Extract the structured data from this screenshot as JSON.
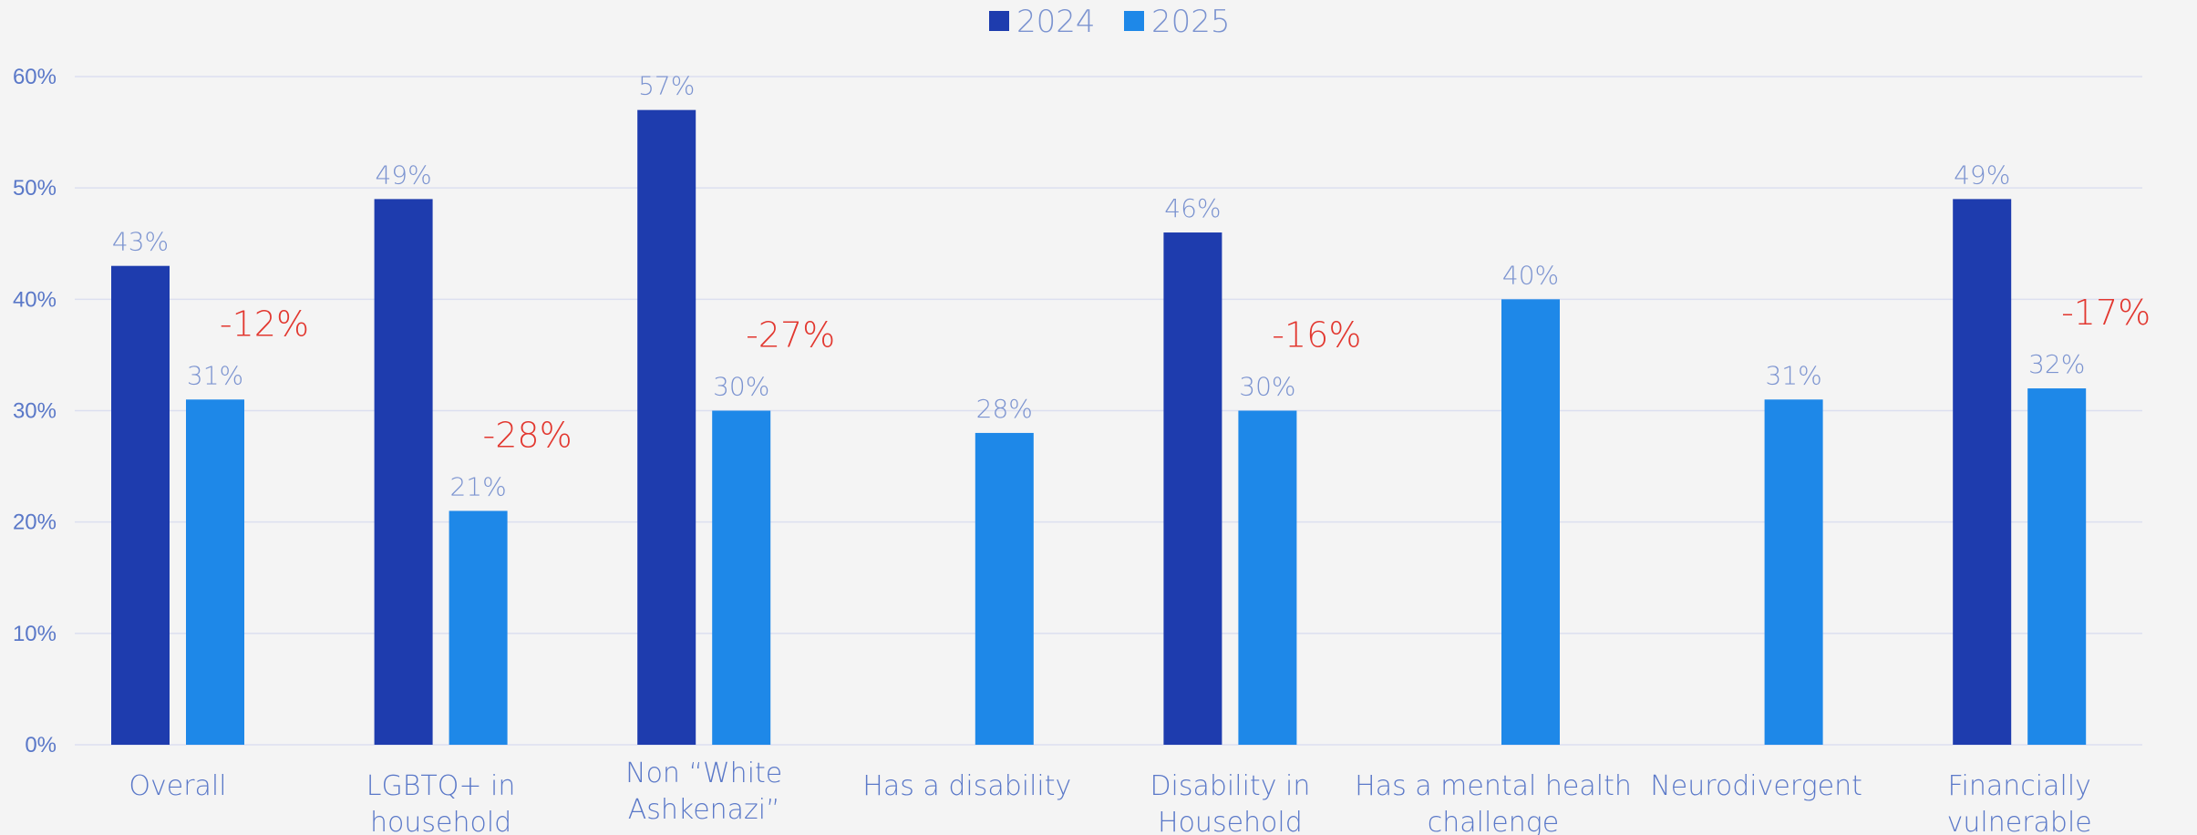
{
  "chart_data": {
    "type": "bar",
    "title": "",
    "xlabel": "",
    "ylabel": "",
    "ylim": [
      0,
      60
    ],
    "yticks": [
      0,
      10,
      20,
      30,
      40,
      50,
      60
    ],
    "ytick_labels": [
      "0%",
      "10%",
      "20%",
      "30%",
      "40%",
      "50%",
      "60%"
    ],
    "grid": true,
    "legend_position": "top-center",
    "categories": [
      [
        "Overall"
      ],
      [
        "LGBTQ+ in",
        "household"
      ],
      [
        "Non “White",
        "Ashkenazi”"
      ],
      [
        "Has a disability"
      ],
      [
        "Disability in",
        "Household"
      ],
      [
        "Has a mental health",
        "challenge"
      ],
      [
        "Neurodivergent"
      ],
      [
        "Financially",
        "vulnerable"
      ]
    ],
    "series": [
      {
        "name": "2024",
        "color": "#1e3cae",
        "values": [
          43,
          49,
          57,
          null,
          46,
          null,
          null,
          49
        ],
        "labels": [
          "43%",
          "49%",
          "57%",
          "",
          "46%",
          "",
          "",
          "49%"
        ]
      },
      {
        "name": "2025",
        "color": "#1e88e8",
        "values": [
          31,
          21,
          30,
          28,
          30,
          40,
          31,
          32
        ],
        "labels": [
          "31%",
          "21%",
          "30%",
          "28%",
          "30%",
          "40%",
          "31%",
          "32%"
        ]
      }
    ],
    "change_labels": [
      "-12%",
      "-28%",
      "-27%",
      "",
      "-16%",
      "",
      "",
      "-17%"
    ],
    "colors": {
      "value_label": "#7b93d0",
      "change_label": "#e2372f",
      "axis_label": "#5a78c8",
      "grid": "#dcdff0"
    }
  }
}
